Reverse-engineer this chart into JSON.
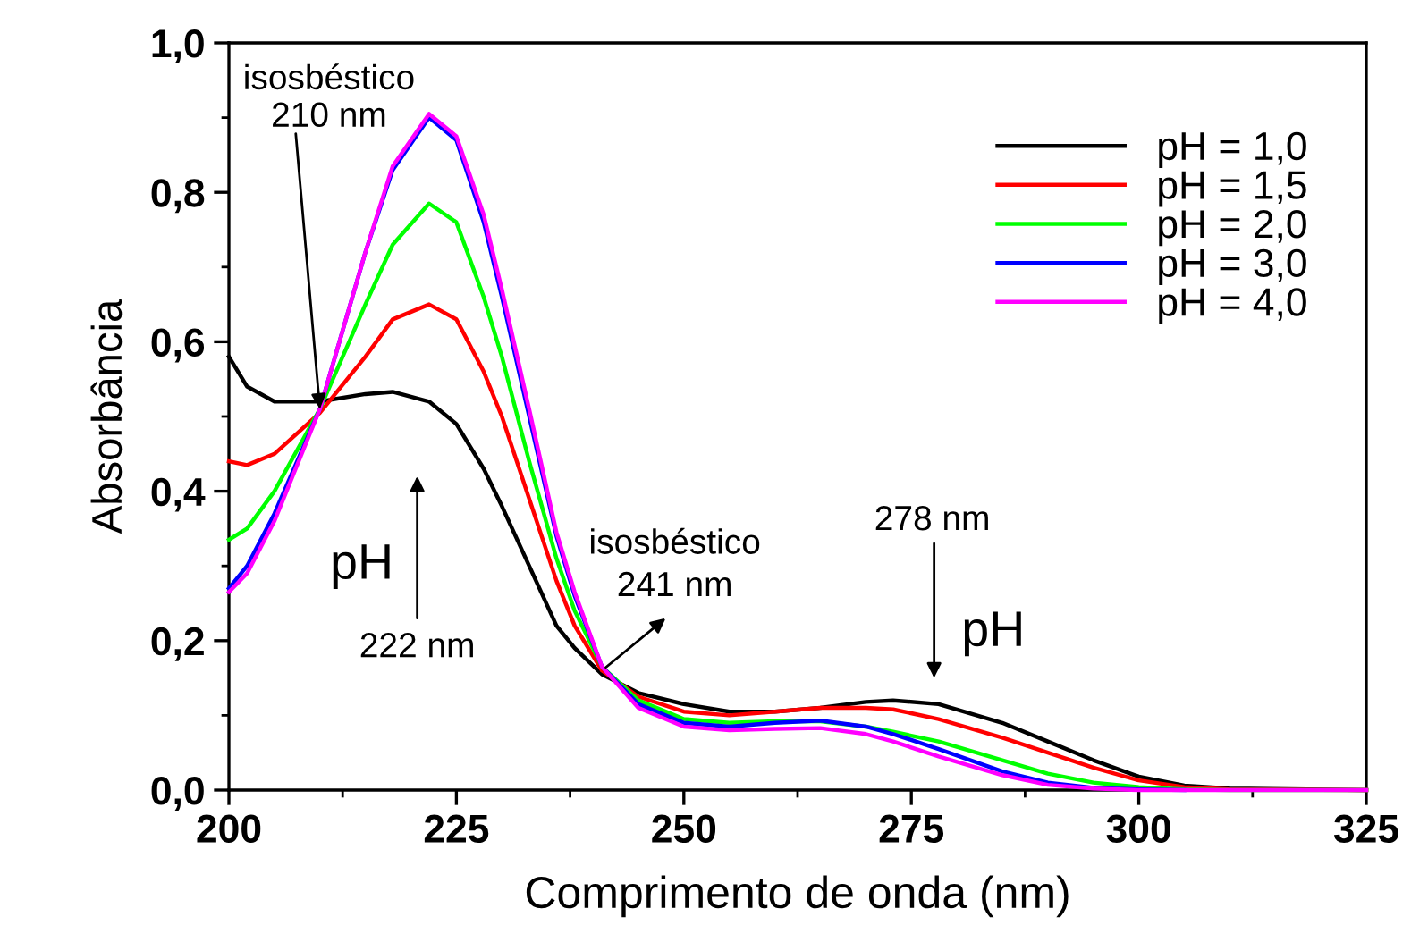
{
  "chart_data": {
    "type": "line",
    "xlabel": "Comprimento de onda (nm)",
    "ylabel": "Absorbância",
    "x": [
      200,
      202,
      205,
      210,
      215,
      218,
      222,
      225,
      228,
      230,
      233,
      236,
      238,
      241,
      245,
      250,
      255,
      260,
      265,
      270,
      273,
      278,
      285,
      290,
      295,
      300,
      305,
      310,
      325
    ],
    "series": [
      {
        "name": "pH = 1,0",
        "color": "#000000",
        "values": [
          0.58,
          0.54,
          0.52,
          0.52,
          0.53,
          0.533,
          0.52,
          0.49,
          0.43,
          0.38,
          0.3,
          0.22,
          0.19,
          0.155,
          0.13,
          0.115,
          0.105,
          0.105,
          0.11,
          0.118,
          0.12,
          0.115,
          0.09,
          0.065,
          0.04,
          0.018,
          0.006,
          0.002,
          0.0
        ]
      },
      {
        "name": "pH = 1,5",
        "color": "#ff0000",
        "values": [
          0.44,
          0.435,
          0.45,
          0.505,
          0.58,
          0.63,
          0.65,
          0.63,
          0.56,
          0.5,
          0.39,
          0.28,
          0.22,
          0.16,
          0.125,
          0.105,
          0.1,
          0.105,
          0.11,
          0.11,
          0.108,
          0.095,
          0.07,
          0.05,
          0.03,
          0.013,
          0.004,
          0.001,
          0.0
        ]
      },
      {
        "name": "pH = 2,0",
        "color": "#00ff00",
        "values": [
          0.335,
          0.35,
          0.4,
          0.51,
          0.65,
          0.73,
          0.785,
          0.76,
          0.66,
          0.58,
          0.44,
          0.31,
          0.24,
          0.165,
          0.12,
          0.095,
          0.09,
          0.092,
          0.092,
          0.085,
          0.078,
          0.065,
          0.04,
          0.022,
          0.01,
          0.004,
          0.001,
          0.0,
          0.0
        ]
      },
      {
        "name": "pH = 3,0",
        "color": "#0000ff",
        "values": [
          0.27,
          0.3,
          0.37,
          0.51,
          0.72,
          0.83,
          0.9,
          0.87,
          0.76,
          0.66,
          0.5,
          0.34,
          0.26,
          0.165,
          0.115,
          0.09,
          0.085,
          0.09,
          0.093,
          0.085,
          0.075,
          0.055,
          0.025,
          0.01,
          0.003,
          0.001,
          0.0,
          null,
          null
        ]
      },
      {
        "name": "pH = 4,0",
        "color": "#ff00ff",
        "values": [
          0.265,
          0.29,
          0.36,
          0.51,
          0.72,
          0.835,
          0.905,
          0.875,
          0.77,
          0.67,
          0.51,
          0.345,
          0.265,
          0.165,
          0.11,
          0.085,
          0.08,
          0.082,
          0.083,
          0.075,
          0.065,
          0.045,
          0.02,
          0.007,
          0.002,
          0.0,
          0.0,
          0.0,
          0.0
        ]
      }
    ],
    "xlim": [
      200,
      325
    ],
    "xticks": [
      200,
      225,
      250,
      275,
      300,
      325
    ],
    "ylim": [
      0,
      1.0
    ],
    "yticks": [
      {
        "value": 0,
        "label": "0,0"
      },
      {
        "value": 0.2,
        "label": "0,2"
      },
      {
        "value": 0.4,
        "label": "0,4"
      },
      {
        "value": 0.6,
        "label": "0,6"
      },
      {
        "value": 0.8,
        "label": "0,8"
      },
      {
        "value": 1.0,
        "label": "1,0"
      }
    ],
    "annotations": [
      {
        "text": "isosbéstico\n210 nm",
        "x": 210,
        "y": 0.51
      },
      {
        "text": "isosbéstico\n241 nm",
        "x": 241,
        "y": 0.16
      },
      "222 nm",
      "278 nm",
      "pH",
      "pH"
    ],
    "grid": false,
    "legend": "top right",
    "marker": "none",
    "line_style": "solid"
  }
}
